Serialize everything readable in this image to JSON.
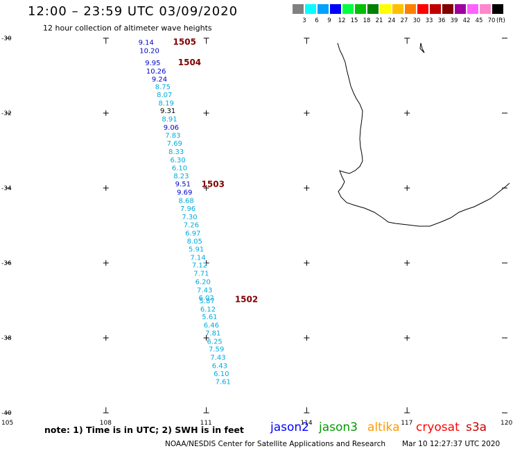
{
  "header": {
    "title": "12:00 – 23:59 UTC 03/09/2020",
    "subtitle": "12 hour collection of altimeter wave heights"
  },
  "legend": {
    "labels": [
      "3",
      "6",
      "9",
      "12",
      "15",
      "18",
      "21",
      "24",
      "27",
      "30",
      "33",
      "36",
      "39",
      "42",
      "45",
      "70"
    ],
    "unit": "(ft)",
    "colors": [
      "#808080",
      "#00ffff",
      "#00a0ff",
      "#0000ff",
      "#00ff40",
      "#00c000",
      "#008000",
      "#ffff00",
      "#ffc000",
      "#ff8000",
      "#ff0000",
      "#c00000",
      "#800000",
      "#a000a0",
      "#ff60ff",
      "#ff88cc",
      "#000000"
    ]
  },
  "axes": {
    "lat_labels": [
      {
        "label": "-30",
        "value": -30
      },
      {
        "label": "-32",
        "value": -32
      },
      {
        "label": "-34",
        "value": -34
      },
      {
        "label": "-36",
        "value": -36
      },
      {
        "label": "-38",
        "value": -38
      },
      {
        "label": "-40",
        "value": -40
      }
    ],
    "lon_labels": [
      {
        "label": "105",
        "value": 105
      },
      {
        "label": "108",
        "value": 108
      },
      {
        "label": "111",
        "value": 111
      },
      {
        "label": "114",
        "value": 114
      },
      {
        "label": "117",
        "value": 117
      },
      {
        "label": "120",
        "value": 120
      }
    ]
  },
  "track": {
    "colors": {
      "dark": "#0000cc",
      "light": "#00aadd",
      "black": "#000000"
    },
    "points": [
      {
        "label": "9.14",
        "lon": 109.2,
        "lat": -30.1,
        "tone": "dark"
      },
      {
        "label": "10.20",
        "lon": 109.3,
        "lat": -30.32,
        "tone": "dark"
      },
      {
        "label": "9.95",
        "lon": 109.4,
        "lat": -30.65,
        "tone": "dark"
      },
      {
        "label": "10.26",
        "lon": 109.5,
        "lat": -30.87,
        "tone": "dark"
      },
      {
        "label": "9.24",
        "lon": 109.6,
        "lat": -31.08,
        "tone": "dark"
      },
      {
        "label": "8.75",
        "lon": 109.7,
        "lat": -31.29,
        "tone": "light"
      },
      {
        "label": "8.07",
        "lon": 109.75,
        "lat": -31.5,
        "tone": "light"
      },
      {
        "label": "8.19",
        "lon": 109.8,
        "lat": -31.72,
        "tone": "light"
      },
      {
        "label": "9.31",
        "lon": 109.85,
        "lat": -31.93,
        "tone": "black"
      },
      {
        "label": "8.91",
        "lon": 109.9,
        "lat": -32.15,
        "tone": "light"
      },
      {
        "label": "9.06",
        "lon": 109.95,
        "lat": -32.37,
        "tone": "dark"
      },
      {
        "label": "7.83",
        "lon": 110.0,
        "lat": -32.58,
        "tone": "light"
      },
      {
        "label": "7.69",
        "lon": 110.05,
        "lat": -32.8,
        "tone": "light"
      },
      {
        "label": "8.33",
        "lon": 110.1,
        "lat": -33.02,
        "tone": "light"
      },
      {
        "label": "6.30",
        "lon": 110.15,
        "lat": -33.24,
        "tone": "light"
      },
      {
        "label": "6.10",
        "lon": 110.2,
        "lat": -33.45,
        "tone": "light"
      },
      {
        "label": "8.23",
        "lon": 110.25,
        "lat": -33.67,
        "tone": "light"
      },
      {
        "label": "9.51",
        "lon": 110.3,
        "lat": -33.88,
        "tone": "dark"
      },
      {
        "label": "9.69",
        "lon": 110.35,
        "lat": -34.1,
        "tone": "dark"
      },
      {
        "label": "8.68",
        "lon": 110.4,
        "lat": -34.32,
        "tone": "light"
      },
      {
        "label": "7.96",
        "lon": 110.45,
        "lat": -34.54,
        "tone": "light"
      },
      {
        "label": "7.30",
        "lon": 110.5,
        "lat": -34.76,
        "tone": "light"
      },
      {
        "label": "7.26",
        "lon": 110.55,
        "lat": -34.97,
        "tone": "light"
      },
      {
        "label": "6.97",
        "lon": 110.6,
        "lat": -35.19,
        "tone": "light"
      },
      {
        "label": "8.05",
        "lon": 110.65,
        "lat": -35.41,
        "tone": "light"
      },
      {
        "label": "5.91",
        "lon": 110.7,
        "lat": -35.62,
        "tone": "light"
      },
      {
        "label": "7.14",
        "lon": 110.75,
        "lat": -35.84,
        "tone": "light"
      },
      {
        "label": "7.12",
        "lon": 110.8,
        "lat": -36.05,
        "tone": "light"
      },
      {
        "label": "7.71",
        "lon": 110.85,
        "lat": -36.27,
        "tone": "light"
      },
      {
        "label": "6.20",
        "lon": 110.9,
        "lat": -36.49,
        "tone": "light"
      },
      {
        "label": "7.43",
        "lon": 110.95,
        "lat": -36.71,
        "tone": "light"
      },
      {
        "label": "6.02",
        "lon": 111.0,
        "lat": -36.92,
        "tone": "light"
      },
      {
        "label": "5.87",
        "lon": 111.02,
        "lat": -37.0,
        "tone": "light"
      },
      {
        "label": "6.12",
        "lon": 111.05,
        "lat": -37.22,
        "tone": "light"
      },
      {
        "label": "5.61",
        "lon": 111.1,
        "lat": -37.43,
        "tone": "light"
      },
      {
        "label": "6.46",
        "lon": 111.15,
        "lat": -37.65,
        "tone": "light"
      },
      {
        "label": "7.81",
        "lon": 111.2,
        "lat": -37.86,
        "tone": "light"
      },
      {
        "label": "6.25",
        "lon": 111.25,
        "lat": -38.08,
        "tone": "light"
      },
      {
        "label": "7.59",
        "lon": 111.3,
        "lat": -38.29,
        "tone": "light"
      },
      {
        "label": "7.43",
        "lon": 111.35,
        "lat": -38.51,
        "tone": "light"
      },
      {
        "label": "6.43",
        "lon": 111.4,
        "lat": -38.73,
        "tone": "light"
      },
      {
        "label": "6.10",
        "lon": 111.45,
        "lat": -38.94,
        "tone": "light"
      },
      {
        "label": "7.61",
        "lon": 111.5,
        "lat": -39.16,
        "tone": "light"
      }
    ],
    "passes": [
      {
        "label": "1505",
        "lon": 110.35,
        "lat": -30.1
      },
      {
        "label": "1504",
        "lon": 110.5,
        "lat": -30.65
      },
      {
        "label": "1503",
        "lon": 111.2,
        "lat": -33.9
      },
      {
        "label": "1502",
        "lon": 112.2,
        "lat": -36.97
      }
    ],
    "pass_color": "#800000"
  },
  "note": "note:  1) Time is in UTC; 2) SWH is in feet",
  "satellites": [
    {
      "name": "jason2",
      "color": "#0000ff"
    },
    {
      "name": "jason3",
      "color": "#009900"
    },
    {
      "name": "altika",
      "color": "#ff9900"
    },
    {
      "name": "cryosat",
      "color": "#ff0000"
    },
    {
      "name": "s3a",
      "color": "#cc0000"
    }
  ],
  "credit": "NOAA/NESDIS Center for Satellite Applications and Research",
  "timestamp": "Mar 10 12:27:37 UTC 2020"
}
